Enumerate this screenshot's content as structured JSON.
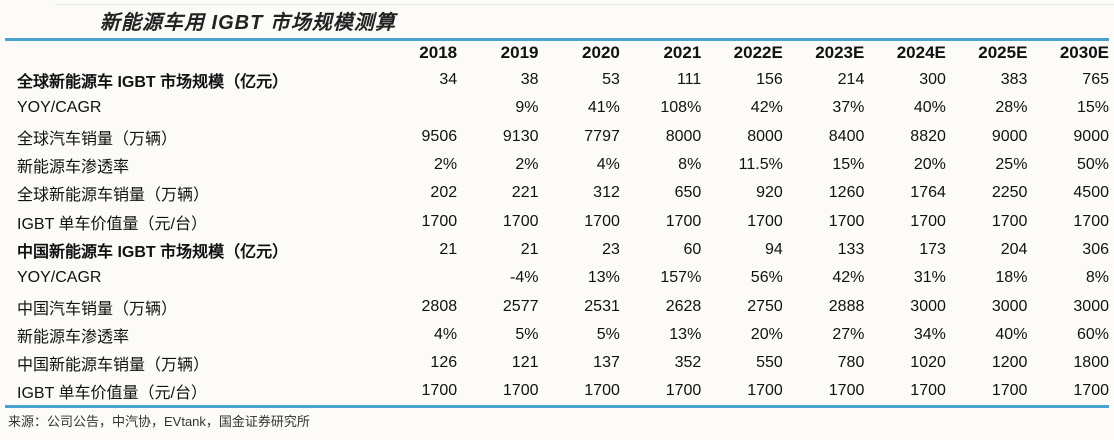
{
  "title": "新能源车用 IGBT 市场规模测算",
  "columns": [
    "2018",
    "2019",
    "2020",
    "2021",
    "2022E",
    "2023E",
    "2024E",
    "2025E",
    "2030E"
  ],
  "rows": [
    {
      "label": "全球新能源车 IGBT 市场规模（亿元）",
      "bold": true,
      "values": [
        "34",
        "38",
        "53",
        "111",
        "156",
        "214",
        "300",
        "383",
        "765"
      ]
    },
    {
      "label": "YOY/CAGR",
      "bold": false,
      "values": [
        "",
        "9%",
        "41%",
        "108%",
        "42%",
        "37%",
        "40%",
        "28%",
        "15%"
      ]
    },
    {
      "label": "全球汽车销量（万辆）",
      "bold": false,
      "values": [
        "9506",
        "9130",
        "7797",
        "8000",
        "8000",
        "8400",
        "8820",
        "9000",
        "9000"
      ]
    },
    {
      "label": "新能源车渗透率",
      "bold": false,
      "values": [
        "2%",
        "2%",
        "4%",
        "8%",
        "11.5%",
        "15%",
        "20%",
        "25%",
        "50%"
      ]
    },
    {
      "label": "全球新能源车销量（万辆）",
      "bold": false,
      "values": [
        "202",
        "221",
        "312",
        "650",
        "920",
        "1260",
        "1764",
        "2250",
        "4500"
      ]
    },
    {
      "label": "IGBT 单车价值量（元/台）",
      "bold": false,
      "values": [
        "1700",
        "1700",
        "1700",
        "1700",
        "1700",
        "1700",
        "1700",
        "1700",
        "1700"
      ]
    },
    {
      "label": "中国新能源车 IGBT 市场规模（亿元）",
      "bold": true,
      "values": [
        "21",
        "21",
        "23",
        "60",
        "94",
        "133",
        "173",
        "204",
        "306"
      ]
    },
    {
      "label": "YOY/CAGR",
      "bold": false,
      "values": [
        "",
        "-4%",
        "13%",
        "157%",
        "56%",
        "42%",
        "31%",
        "18%",
        "8%"
      ]
    },
    {
      "label": "中国汽车销量（万辆）",
      "bold": false,
      "values": [
        "2808",
        "2577",
        "2531",
        "2628",
        "2750",
        "2888",
        "3000",
        "3000",
        "3000"
      ]
    },
    {
      "label": "新能源车渗透率",
      "bold": false,
      "values": [
        "4%",
        "5%",
        "5%",
        "13%",
        "20%",
        "27%",
        "34%",
        "40%",
        "60%"
      ]
    },
    {
      "label": "中国新能源车销量（万辆）",
      "bold": false,
      "values": [
        "126",
        "121",
        "137",
        "352",
        "550",
        "780",
        "1020",
        "1200",
        "1800"
      ]
    },
    {
      "label": "IGBT 单车价值量（元/台）",
      "bold": false,
      "values": [
        "1700",
        "1700",
        "1700",
        "1700",
        "1700",
        "1700",
        "1700",
        "1700",
        "1700"
      ]
    }
  ],
  "source": "来源：公司公告，中汽协，EVtank，国金证券研究所",
  "colors": {
    "rule": "#4aa3cf"
  }
}
